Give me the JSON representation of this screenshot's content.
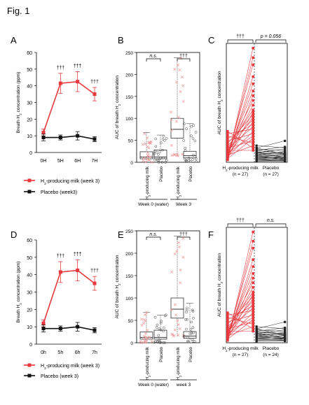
{
  "figure_title": "Fig. 1",
  "colors": {
    "milk": "#e8383d",
    "placebo": "#111111",
    "milk_light": "#f19a9a"
  },
  "chart_data": [
    {
      "id": "A",
      "type": "line",
      "ylabel": "Breath H2 concentration (ppm)",
      "categories": [
        "0H",
        "5H",
        "6H",
        "7H"
      ],
      "ylim": [
        0,
        60
      ],
      "yticks": [
        0,
        10,
        20,
        30,
        40,
        50,
        60
      ],
      "series": [
        {
          "name": "H2-producing  milk (week 3)",
          "values": [
            12,
            41.5,
            42.5,
            35
          ],
          "errors": [
            2,
            6,
            6,
            4
          ],
          "color": "milk"
        },
        {
          "name": "Placebo (week3)",
          "values": [
            9,
            9,
            10,
            8
          ],
          "errors": [
            2,
            1.5,
            2.5,
            1.5
          ],
          "color": "placebo"
        }
      ],
      "annotations": [
        null,
        "†††",
        "†††",
        "†††"
      ]
    },
    {
      "id": "B",
      "type": "box",
      "ylabel": "AUC of breath H2 concentration",
      "ylim": [
        0,
        250
      ],
      "yticks": [
        0,
        50,
        100,
        150,
        200,
        250
      ],
      "groups": [
        {
          "label": "H2-producing milk",
          "q1": 8,
          "median": 12,
          "q3": 24,
          "whisker_low": 0,
          "whisker_high": 68,
          "color": "milk"
        },
        {
          "label": "Placebo",
          "q1": 8,
          "median": 12,
          "q3": 28,
          "whisker_low": 0,
          "whisker_high": 62,
          "color": "placebo"
        },
        {
          "label": "H2-producing milk",
          "q1": 55,
          "median": 75,
          "q3": 100,
          "whisker_low": 15,
          "whisker_high": 238,
          "color": "milk"
        },
        {
          "label": "Placebo",
          "q1": 10,
          "median": 15,
          "q3": 25,
          "whisker_low": 2,
          "whisker_high": 88,
          "color": "placebo"
        }
      ],
      "group_labels": [
        "Week 0 (water)",
        "Week 3"
      ],
      "significance": [
        "n.s.",
        "†††"
      ]
    },
    {
      "id": "C",
      "type": "line",
      "ylabel": "AUC of breath H2 concentration",
      "categories": [
        "H2-producing milk (n = 27)",
        "Placebo (n = 27)"
      ],
      "ylim": [
        0,
        250
      ],
      "significance": [
        "†††",
        "p = 0.056"
      ],
      "milk_pairs": [
        [
          5,
          240
        ],
        [
          8,
          220
        ],
        [
          12,
          205
        ],
        [
          10,
          180
        ],
        [
          15,
          165
        ],
        [
          20,
          150
        ],
        [
          6,
          140
        ],
        [
          25,
          130
        ],
        [
          18,
          120
        ],
        [
          30,
          110
        ],
        [
          10,
          105
        ],
        [
          40,
          100
        ],
        [
          22,
          95
        ],
        [
          35,
          90
        ],
        [
          15,
          85
        ],
        [
          50,
          80
        ],
        [
          28,
          75
        ],
        [
          60,
          70
        ],
        [
          12,
          65
        ],
        [
          45,
          60
        ],
        [
          20,
          55
        ],
        [
          8,
          50
        ],
        [
          30,
          45
        ],
        [
          55,
          40
        ],
        [
          15,
          35
        ],
        [
          65,
          30
        ],
        [
          25,
          25
        ]
      ],
      "placebo_pairs": [
        [
          90,
          30
        ],
        [
          62,
          25
        ],
        [
          55,
          20
        ],
        [
          50,
          35
        ],
        [
          45,
          15
        ],
        [
          40,
          28
        ],
        [
          35,
          22
        ],
        [
          32,
          18
        ],
        [
          30,
          12
        ],
        [
          28,
          25
        ],
        [
          26,
          20
        ],
        [
          25,
          15
        ],
        [
          22,
          10
        ],
        [
          20,
          30
        ],
        [
          18,
          8
        ],
        [
          16,
          12
        ],
        [
          15,
          5
        ],
        [
          14,
          18
        ],
        [
          12,
          10
        ],
        [
          10,
          22
        ],
        [
          9,
          6
        ],
        [
          8,
          15
        ],
        [
          7,
          3
        ],
        [
          6,
          8
        ],
        [
          5,
          12
        ],
        [
          4,
          5
        ],
        [
          3,
          2
        ]
      ]
    },
    {
      "id": "D",
      "type": "line",
      "ylabel": "Breath H2 concentration (ppm)",
      "categories": [
        "0h",
        "5h",
        "6h",
        "7h"
      ],
      "ylim": [
        0,
        60
      ],
      "yticks": [
        0,
        10,
        20,
        30,
        40,
        50,
        60
      ],
      "series": [
        {
          "name": "H2-producing  milk (week 3)",
          "values": [
            12,
            41.5,
            42.5,
            35
          ],
          "errors": [
            2,
            6,
            6,
            4
          ],
          "color": "milk"
        },
        {
          "name": "Placebo (week 3)",
          "values": [
            9,
            9,
            10,
            8
          ],
          "errors": [
            2,
            1.5,
            2.5,
            1.5
          ],
          "color": "placebo"
        }
      ],
      "annotations": [
        null,
        "†††",
        "†††",
        "†††"
      ]
    },
    {
      "id": "E",
      "type": "box",
      "ylabel": "AUC of breath H2 concentration",
      "ylim": [
        0,
        250
      ],
      "yticks": [
        0,
        50,
        100,
        150,
        200,
        250
      ],
      "groups": [
        {
          "label": "H2-producing milk",
          "q1": 8,
          "median": 12,
          "q3": 24,
          "whisker_low": 0,
          "whisker_high": 68,
          "color": "milk"
        },
        {
          "label": "Placebo",
          "q1": 8,
          "median": 12,
          "q3": 28,
          "whisker_low": 0,
          "whisker_high": 62,
          "color": "placebo"
        },
        {
          "label": "H2-producing milk",
          "q1": 55,
          "median": 75,
          "q3": 100,
          "whisker_low": 15,
          "whisker_high": 238,
          "color": "milk"
        },
        {
          "label": "Placebo",
          "q1": 10,
          "median": 15,
          "q3": 25,
          "whisker_low": 2,
          "whisker_high": 88,
          "color": "placebo"
        }
      ],
      "group_labels": [
        "Week 0 (water)",
        "week 3"
      ],
      "significance": [
        "n.s.",
        "†††"
      ]
    },
    {
      "id": "F",
      "type": "line",
      "ylabel": "AUC of breath H2 concentration",
      "categories": [
        "H2-producing milk (n = 27)",
        "Placebo (n = 24)"
      ],
      "ylim": [
        0,
        250
      ],
      "significance": [
        "†††",
        "n.s."
      ],
      "milk_pairs": [
        [
          5,
          240
        ],
        [
          8,
          220
        ],
        [
          12,
          205
        ],
        [
          10,
          180
        ],
        [
          15,
          165
        ],
        [
          20,
          150
        ],
        [
          6,
          140
        ],
        [
          25,
          130
        ],
        [
          18,
          120
        ],
        [
          30,
          110
        ],
        [
          10,
          105
        ],
        [
          40,
          100
        ],
        [
          22,
          95
        ],
        [
          35,
          90
        ],
        [
          15,
          85
        ],
        [
          50,
          80
        ],
        [
          28,
          75
        ],
        [
          60,
          70
        ],
        [
          12,
          65
        ],
        [
          45,
          60
        ],
        [
          20,
          55
        ],
        [
          8,
          50
        ],
        [
          30,
          45
        ],
        [
          55,
          40
        ],
        [
          15,
          35
        ],
        [
          65,
          30
        ],
        [
          25,
          25
        ]
      ],
      "placebo_pairs": [
        [
          90,
          30
        ],
        [
          62,
          25
        ],
        [
          55,
          20
        ],
        [
          50,
          35
        ],
        [
          45,
          15
        ],
        [
          40,
          28
        ],
        [
          35,
          22
        ],
        [
          32,
          18
        ],
        [
          30,
          12
        ],
        [
          28,
          25
        ],
        [
          26,
          20
        ],
        [
          25,
          15
        ],
        [
          22,
          10
        ],
        [
          20,
          30
        ],
        [
          18,
          8
        ],
        [
          16,
          12
        ],
        [
          15,
          5
        ],
        [
          14,
          18
        ],
        [
          12,
          10
        ],
        [
          10,
          22
        ],
        [
          9,
          6
        ],
        [
          8,
          15
        ],
        [
          7,
          3
        ],
        [
          6,
          8
        ]
      ]
    }
  ]
}
